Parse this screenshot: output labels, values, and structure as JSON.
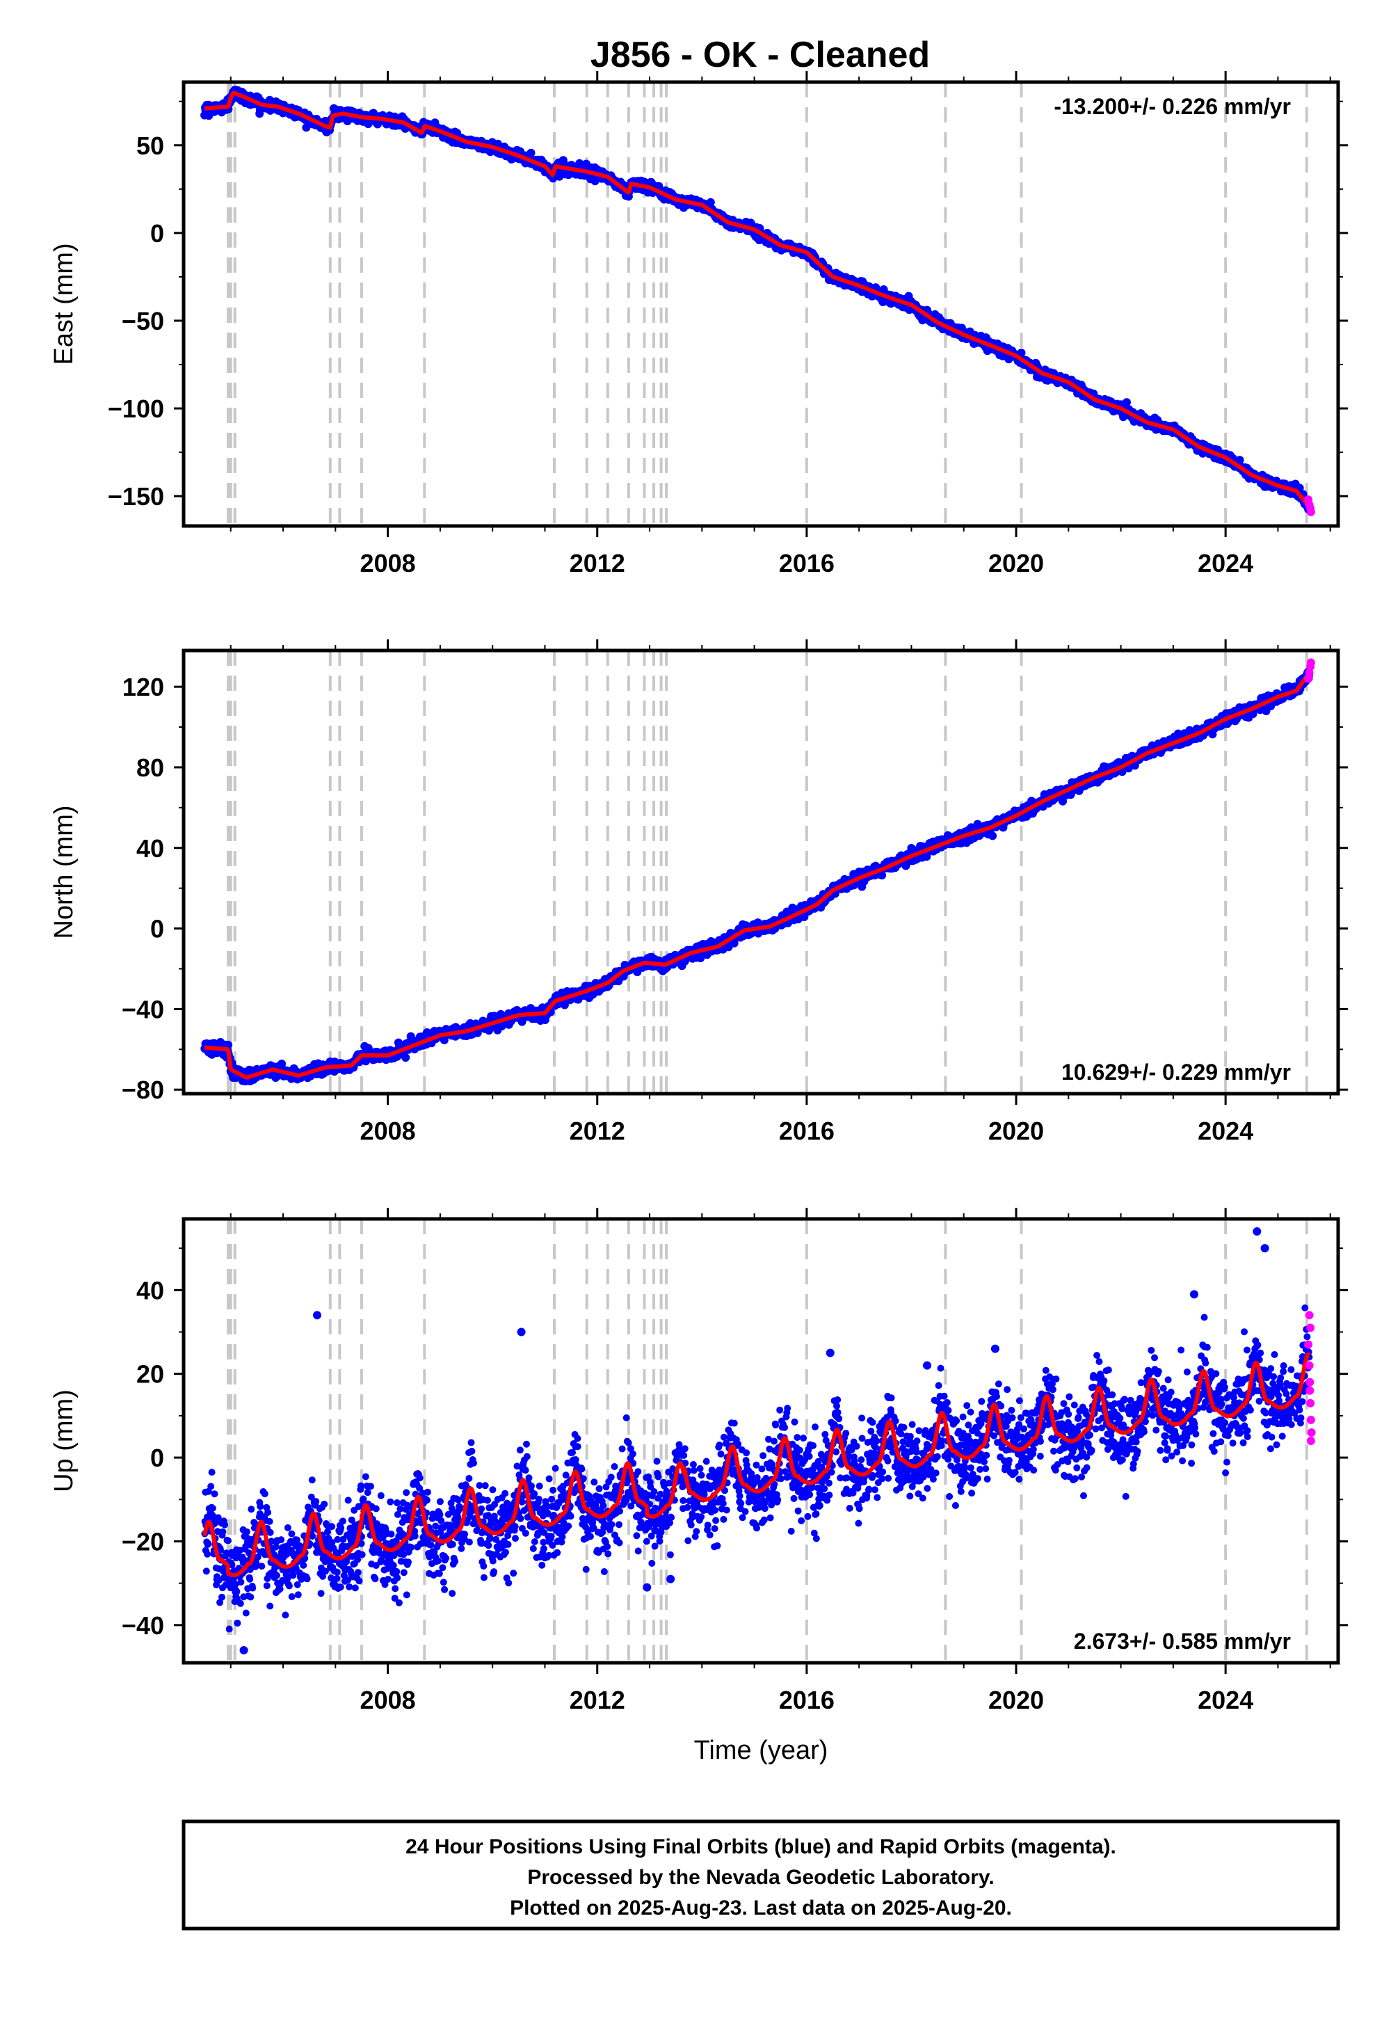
{
  "title": "J856  - OK - Cleaned",
  "footer": {
    "lines": [
      "24 Hour Positions Using Final Orbits (blue) and Rapid Orbits (magenta).",
      "Processed by the Nevada Geodetic Laboratory.",
      "Plotted on 2025-Aug-23. Last data on 2025-Aug-20."
    ]
  },
  "colors": {
    "final_orbits": "#0000ff",
    "rapid_orbits": "#ff00ff",
    "model": "#ff0000",
    "event_lines": "#c8c8c8"
  },
  "chart_data": [
    {
      "type": "scatter",
      "component": "east",
      "ylabel": "East (mm)",
      "xlabel": "",
      "xlim": [
        2004.1,
        2026.15
      ],
      "ylim": [
        -167,
        86
      ],
      "yticks": [
        -150,
        -100,
        -50,
        0,
        50
      ],
      "xticks": [
        2008,
        2012,
        2016,
        2020,
        2024
      ],
      "rate_label": "-13.200+/- 0.226 mm/yr",
      "rate_position": "top-right",
      "model_points": [
        [
          2004.5,
          71
        ],
        [
          2004.95,
          72
        ],
        [
          2005.0,
          77
        ],
        [
          2005.05,
          80
        ],
        [
          2005.3,
          77
        ],
        [
          2005.6,
          73
        ],
        [
          2005.9,
          72
        ],
        [
          2006.3,
          68
        ],
        [
          2006.8,
          61
        ],
        [
          2006.9,
          60
        ],
        [
          2006.95,
          67
        ],
        [
          2007.15,
          68
        ],
        [
          2007.5,
          66
        ],
        [
          2007.9,
          65
        ],
        [
          2008.3,
          63
        ],
        [
          2008.65,
          57
        ],
        [
          2008.7,
          61
        ],
        [
          2009.0,
          58
        ],
        [
          2009.5,
          52
        ],
        [
          2010.0,
          49
        ],
        [
          2010.5,
          44
        ],
        [
          2011.0,
          38
        ],
        [
          2011.15,
          33
        ],
        [
          2011.2,
          38
        ],
        [
          2011.8,
          35
        ],
        [
          2012.2,
          32
        ],
        [
          2012.6,
          23
        ],
        [
          2012.65,
          28
        ],
        [
          2013.0,
          26
        ],
        [
          2013.5,
          19
        ],
        [
          2014.0,
          16
        ],
        [
          2014.5,
          6
        ],
        [
          2015.0,
          2
        ],
        [
          2015.5,
          -7
        ],
        [
          2016.0,
          -11
        ],
        [
          2016.5,
          -25
        ],
        [
          2017.0,
          -30
        ],
        [
          2017.5,
          -36
        ],
        [
          2018.0,
          -41
        ],
        [
          2018.5,
          -51
        ],
        [
          2019.0,
          -58
        ],
        [
          2019.5,
          -64
        ],
        [
          2020.0,
          -70
        ],
        [
          2020.5,
          -80
        ],
        [
          2021.0,
          -85
        ],
        [
          2021.5,
          -95
        ],
        [
          2022.0,
          -100
        ],
        [
          2022.5,
          -108
        ],
        [
          2023.0,
          -112
        ],
        [
          2023.5,
          -122
        ],
        [
          2024.0,
          -128
        ],
        [
          2024.5,
          -138
        ],
        [
          2025.0,
          -144
        ],
        [
          2025.35,
          -147
        ],
        [
          2025.6,
          -156
        ]
      ],
      "rapid_points": [
        [
          2025.58,
          -152
        ],
        [
          2025.6,
          -155
        ],
        [
          2025.62,
          -157
        ],
        [
          2025.63,
          -159
        ]
      ]
    },
    {
      "type": "scatter",
      "component": "north",
      "ylabel": "North (mm)",
      "xlabel": "",
      "xlim": [
        2004.1,
        2026.15
      ],
      "ylim": [
        -82,
        138
      ],
      "yticks": [
        -80,
        -40,
        0,
        40,
        80,
        120
      ],
      "xticks": [
        2008,
        2012,
        2016,
        2020,
        2024
      ],
      "rate_label": "10.629+/- 0.229 mm/yr",
      "rate_position": "bottom-right",
      "model_points": [
        [
          2004.5,
          -59
        ],
        [
          2004.95,
          -60
        ],
        [
          2005.0,
          -70
        ],
        [
          2005.3,
          -74
        ],
        [
          2005.8,
          -70
        ],
        [
          2006.3,
          -73
        ],
        [
          2006.8,
          -69
        ],
        [
          2007.3,
          -68
        ],
        [
          2007.5,
          -63
        ],
        [
          2008.0,
          -63
        ],
        [
          2008.5,
          -58
        ],
        [
          2009.0,
          -53
        ],
        [
          2009.5,
          -51
        ],
        [
          2010.0,
          -47
        ],
        [
          2010.5,
          -43
        ],
        [
          2011.0,
          -42
        ],
        [
          2011.2,
          -36
        ],
        [
          2011.8,
          -31
        ],
        [
          2012.2,
          -27
        ],
        [
          2012.5,
          -21
        ],
        [
          2012.9,
          -17
        ],
        [
          2013.3,
          -18
        ],
        [
          2013.8,
          -12
        ],
        [
          2014.3,
          -9
        ],
        [
          2014.8,
          -1
        ],
        [
          2015.3,
          1
        ],
        [
          2015.8,
          7
        ],
        [
          2016.2,
          12
        ],
        [
          2016.5,
          19
        ],
        [
          2017.0,
          25
        ],
        [
          2017.5,
          30
        ],
        [
          2018.0,
          36
        ],
        [
          2018.5,
          41
        ],
        [
          2019.0,
          46
        ],
        [
          2019.5,
          50
        ],
        [
          2020.0,
          56
        ],
        [
          2020.5,
          63
        ],
        [
          2021.0,
          69
        ],
        [
          2021.5,
          75
        ],
        [
          2022.0,
          80
        ],
        [
          2022.5,
          87
        ],
        [
          2023.0,
          92
        ],
        [
          2023.5,
          97
        ],
        [
          2024.0,
          104
        ],
        [
          2024.5,
          109
        ],
        [
          2025.0,
          115
        ],
        [
          2025.35,
          118
        ],
        [
          2025.6,
          127
        ]
      ],
      "rapid_points": [
        [
          2025.58,
          124
        ],
        [
          2025.6,
          127
        ],
        [
          2025.62,
          130
        ],
        [
          2025.63,
          132
        ]
      ]
    },
    {
      "type": "scatter",
      "component": "up",
      "ylabel": "Up (mm)",
      "xlabel": "Time (year)",
      "xlim": [
        2004.1,
        2026.15
      ],
      "ylim": [
        -49,
        57
      ],
      "yticks": [
        -40,
        -20,
        0,
        20,
        40
      ],
      "xticks": [
        2008,
        2012,
        2016,
        2020,
        2024
      ],
      "rate_label": "2.673+/- 0.585 mm/yr",
      "rate_position": "bottom-right",
      "model": {
        "start": 2004.5,
        "end": 2025.6,
        "step": 2004.95,
        "pre_offset": 2,
        "post_offset": -4.5,
        "step_2": 2012.95,
        "post_offset_2": -2,
        "slope_per_year": 2.0,
        "ref_year": 2015.5,
        "ref_value": -3,
        "seasonal_amplitude": 6,
        "seasonal_peak": 0.58
      },
      "outliers": [
        [
          2005.25,
          -46
        ],
        [
          2006.65,
          34
        ],
        [
          2010.55,
          30
        ],
        [
          2024.6,
          54
        ],
        [
          2024.75,
          50
        ],
        [
          2023.4,
          39
        ],
        [
          2013.4,
          -29
        ],
        [
          2012.95,
          -31
        ],
        [
          2005.1,
          -32
        ],
        [
          2016.45,
          25
        ],
        [
          2018.3,
          22
        ],
        [
          2019.6,
          26
        ]
      ],
      "rapid_points": [
        [
          2025.58,
          27
        ],
        [
          2025.6,
          22
        ],
        [
          2025.61,
          18
        ],
        [
          2025.62,
          13
        ],
        [
          2025.63,
          9
        ],
        [
          2025.64,
          6
        ],
        [
          2025.6,
          34
        ],
        [
          2025.62,
          31
        ],
        [
          2025.63,
          4
        ],
        [
          2025.61,
          16
        ]
      ]
    }
  ],
  "event_lines": [
    2004.95,
    2005.0,
    2005.08,
    2006.9,
    2007.08,
    2007.5,
    2008.7,
    2011.18,
    2011.8,
    2012.2,
    2012.6,
    2012.9,
    2013.08,
    2013.22,
    2013.32,
    2016.0,
    2018.65,
    2020.1,
    2024.0,
    2025.55
  ]
}
